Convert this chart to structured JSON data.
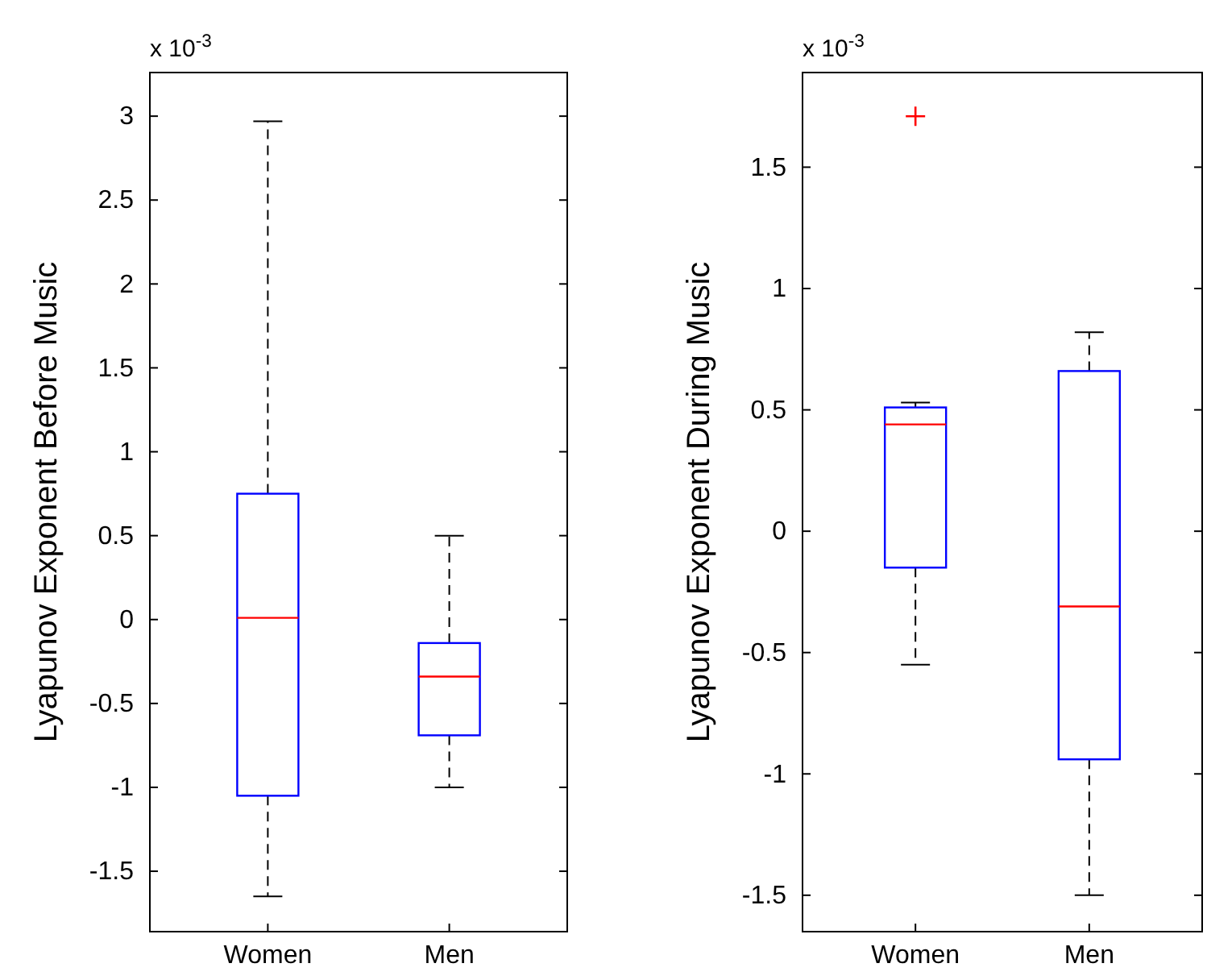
{
  "chart_data": [
    {
      "type": "box",
      "ylabel": "Lyapunov Exponent Before Music",
      "annotations": [
        "x 10$^{-3}$"
      ],
      "categories": [
        "Women",
        "Men"
      ],
      "ylim": [
        -1.86,
        3.26
      ],
      "yticks": [
        -1.5,
        -1,
        -0.5,
        0,
        0.5,
        1,
        1.5,
        2,
        2.5,
        3
      ],
      "grid": false,
      "series": [
        {
          "color": "#0000ff",
          "boxes": [
            {
              "low": -1.65,
              "q1": -1.05,
              "median": 0.01,
              "q3": 0.75,
              "high": 2.97
            },
            {
              "low": -1.0,
              "q1": -0.69,
              "median": -0.34,
              "q3": -0.14,
              "high": 0.5
            }
          ]
        }
      ]
    },
    {
      "type": "box",
      "ylabel": "Lyapunov Exponent During Music",
      "annotations": [
        "x 10$^{-3}$"
      ],
      "categories": [
        "Women",
        "Men"
      ],
      "ylim": [
        -1.65,
        1.89
      ],
      "yticks": [
        -1.5,
        -1,
        -0.5,
        0,
        0.5,
        1,
        1.5
      ],
      "grid": false,
      "series": [
        {
          "color": "#0000ff",
          "boxes": [
            {
              "low": -0.55,
              "q1": -0.15,
              "median": 0.44,
              "q3": 0.51,
              "high": 0.53,
              "outliers": [
                1.71
              ]
            },
            {
              "low": -1.5,
              "q1": -0.94,
              "median": -0.31,
              "q3": 0.66,
              "high": 0.82
            }
          ]
        }
      ]
    }
  ]
}
